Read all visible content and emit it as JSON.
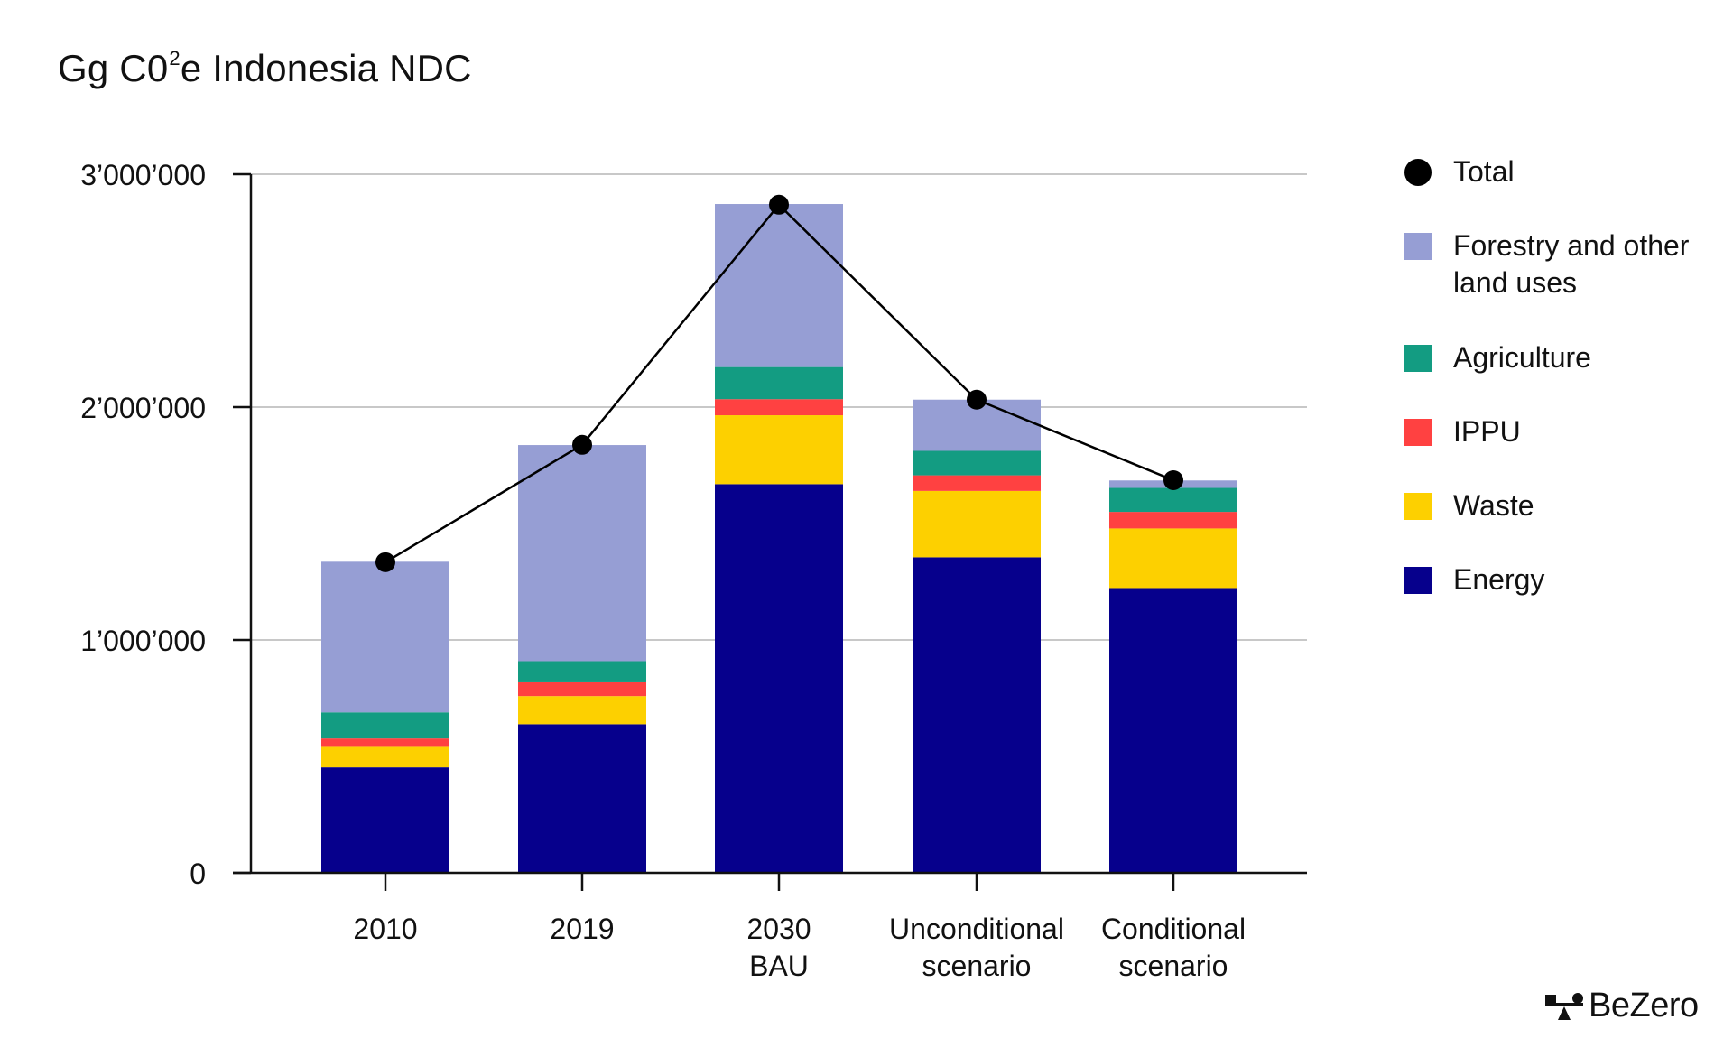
{
  "title": {
    "main": "Gg C0",
    "superscript": "2",
    "rest": "e Indonesia NDC"
  },
  "brand": {
    "name": "BeZero",
    "icon": "bezero-logo-icon"
  },
  "colors": {
    "Energy": "#06008c",
    "Waste": "#fdd000",
    "IPPU": "#ff4141",
    "Agriculture": "#139c82",
    "Forestry": "#969ed4",
    "Total": "#000000",
    "grid": "#c8c8c8",
    "axis": "#111111"
  },
  "legend": [
    {
      "label": "Total",
      "key": "Total",
      "shape": "circle"
    },
    {
      "label": "Forestry and other land uses",
      "key": "Forestry",
      "shape": "square"
    },
    {
      "label": "Agriculture",
      "key": "Agriculture",
      "shape": "square"
    },
    {
      "label": "IPPU",
      "key": "IPPU",
      "shape": "square"
    },
    {
      "label": "Waste",
      "key": "Waste",
      "shape": "square"
    },
    {
      "label": "Energy",
      "key": "Energy",
      "shape": "square"
    }
  ],
  "chart_data": {
    "type": "bar",
    "stacked": true,
    "title": "Gg C0²e Indonesia NDC",
    "xlabel": "",
    "ylabel": "",
    "categories": [
      [
        "2010"
      ],
      [
        "2019"
      ],
      [
        "2030",
        "BAU"
      ],
      [
        "Unconditional",
        "scenario"
      ],
      [
        "Conditional",
        "scenario"
      ]
    ],
    "ylim": [
      0,
      3000000
    ],
    "yticks": [
      0,
      1000000,
      2000000,
      3000000
    ],
    "ytick_labels": [
      "0",
      "1’000’000",
      "2’000’000",
      "3’000’000"
    ],
    "grid": true,
    "legend_position": "right",
    "series": [
      {
        "name": "Energy",
        "values": [
          453000,
          638000,
          1669000,
          1355000,
          1223000
        ]
      },
      {
        "name": "Waste",
        "values": [
          88000,
          121000,
          296000,
          285000,
          256000
        ]
      },
      {
        "name": "IPPU",
        "values": [
          36000,
          59000,
          69000,
          67000,
          71000
        ]
      },
      {
        "name": "Agriculture",
        "values": [
          112000,
          91000,
          138000,
          105000,
          103000
        ]
      },
      {
        "name": "Forestry and other land uses",
        "values": [
          647000,
          928000,
          700000,
          220000,
          32000
        ]
      }
    ],
    "line_series": {
      "name": "Total",
      "values": [
        1334000,
        1838000,
        2869000,
        2032000,
        1686000
      ]
    }
  }
}
